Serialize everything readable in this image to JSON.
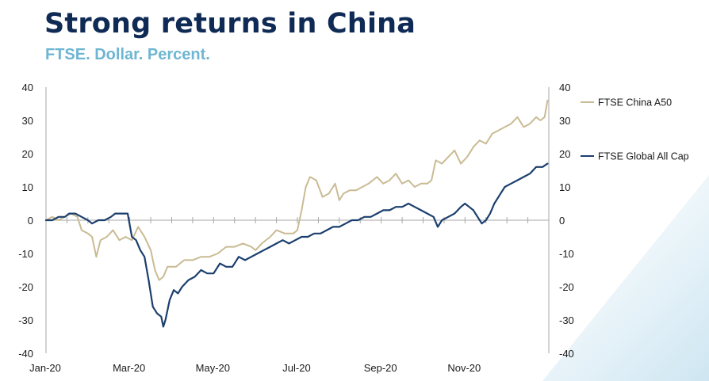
{
  "header": {
    "title": "Strong returns in China",
    "subtitle": "FTSE. Dollar. Percent."
  },
  "colors": {
    "title": "#0f2a55",
    "subtitle": "#6fb6d2",
    "china_a50": "#c9bb93",
    "global_all_cap": "#1b3f6e",
    "axis": "#a7a7a7"
  },
  "chart_data": {
    "type": "line",
    "title": "",
    "xlabel": "",
    "ylabel": "",
    "ylim": [
      -40,
      40
    ],
    "yticks": [
      40,
      30,
      20,
      10,
      0,
      -10,
      -20,
      -30,
      -40
    ],
    "yticks_right": [
      "40",
      "30",
      "20",
      "10",
      "0",
      "-10",
      "-20",
      "-30",
      "-40"
    ],
    "yticks_left": [
      "40",
      "30",
      "20",
      "10",
      "0",
      "-10",
      "-20",
      "-30",
      "-40"
    ],
    "xlim": [
      0,
      12
    ],
    "xticks": [
      {
        "label": "Jan-20",
        "x": 0
      },
      {
        "label": "Mar-20",
        "x": 2
      },
      {
        "label": "May-20",
        "x": 4
      },
      {
        "label": "Jul-20",
        "x": 6
      },
      {
        "label": "Sep-20",
        "x": 8
      },
      {
        "label": "Nov-20",
        "x": 10
      }
    ],
    "grid": false,
    "legend_position": "right",
    "series": [
      {
        "name": "FTSE China A50",
        "color": "#c9bb93",
        "points": [
          [
            0,
            0
          ],
          [
            0.15,
            1
          ],
          [
            0.3,
            0
          ],
          [
            0.45,
            1
          ],
          [
            0.6,
            2
          ],
          [
            0.75,
            1
          ],
          [
            0.85,
            -3
          ],
          [
            1.0,
            -4
          ],
          [
            1.1,
            -5
          ],
          [
            1.2,
            -11
          ],
          [
            1.3,
            -6
          ],
          [
            1.45,
            -5
          ],
          [
            1.6,
            -3
          ],
          [
            1.75,
            -6
          ],
          [
            1.9,
            -5
          ],
          [
            2.05,
            -6
          ],
          [
            2.2,
            -2
          ],
          [
            2.35,
            -5
          ],
          [
            2.5,
            -9
          ],
          [
            2.6,
            -15
          ],
          [
            2.7,
            -18
          ],
          [
            2.8,
            -17
          ],
          [
            2.9,
            -14
          ],
          [
            3.1,
            -14
          ],
          [
            3.3,
            -12
          ],
          [
            3.5,
            -12
          ],
          [
            3.7,
            -11
          ],
          [
            3.9,
            -11
          ],
          [
            4.1,
            -10
          ],
          [
            4.3,
            -8
          ],
          [
            4.5,
            -8
          ],
          [
            4.7,
            -7
          ],
          [
            4.9,
            -8
          ],
          [
            5.0,
            -9
          ],
          [
            5.15,
            -7
          ],
          [
            5.35,
            -5
          ],
          [
            5.5,
            -3
          ],
          [
            5.7,
            -4
          ],
          [
            5.9,
            -4
          ],
          [
            6.0,
            -3
          ],
          [
            6.1,
            3
          ],
          [
            6.2,
            10
          ],
          [
            6.3,
            13
          ],
          [
            6.45,
            12
          ],
          [
            6.6,
            7
          ],
          [
            6.75,
            8
          ],
          [
            6.9,
            11
          ],
          [
            7.0,
            6
          ],
          [
            7.1,
            8
          ],
          [
            7.25,
            9
          ],
          [
            7.4,
            9
          ],
          [
            7.55,
            10
          ],
          [
            7.7,
            11
          ],
          [
            7.9,
            13
          ],
          [
            8.05,
            11
          ],
          [
            8.2,
            12
          ],
          [
            8.35,
            14
          ],
          [
            8.5,
            11
          ],
          [
            8.65,
            12
          ],
          [
            8.8,
            10
          ],
          [
            8.95,
            11
          ],
          [
            9.1,
            11
          ],
          [
            9.2,
            12
          ],
          [
            9.3,
            18
          ],
          [
            9.45,
            17
          ],
          [
            9.6,
            19
          ],
          [
            9.75,
            21
          ],
          [
            9.9,
            17
          ],
          [
            10.05,
            19
          ],
          [
            10.2,
            22
          ],
          [
            10.35,
            24
          ],
          [
            10.5,
            23
          ],
          [
            10.65,
            26
          ],
          [
            10.8,
            27
          ],
          [
            10.95,
            28
          ],
          [
            11.1,
            29
          ],
          [
            11.25,
            31
          ],
          [
            11.4,
            28
          ],
          [
            11.55,
            29
          ],
          [
            11.7,
            31
          ],
          [
            11.8,
            30
          ],
          [
            11.9,
            31
          ],
          [
            11.97,
            36
          ]
        ]
      },
      {
        "name": "FTSE Global All Cap",
        "color": "#1b3f6e",
        "points": [
          [
            0,
            0
          ],
          [
            0.15,
            0
          ],
          [
            0.3,
            1
          ],
          [
            0.45,
            1
          ],
          [
            0.55,
            2
          ],
          [
            0.7,
            2
          ],
          [
            0.85,
            1
          ],
          [
            1.0,
            0
          ],
          [
            1.1,
            -1
          ],
          [
            1.25,
            0
          ],
          [
            1.4,
            0
          ],
          [
            1.55,
            1
          ],
          [
            1.65,
            2
          ],
          [
            1.8,
            2
          ],
          [
            1.95,
            2
          ],
          [
            2.05,
            -5
          ],
          [
            2.15,
            -6
          ],
          [
            2.25,
            -9
          ],
          [
            2.35,
            -11
          ],
          [
            2.45,
            -18
          ],
          [
            2.55,
            -26
          ],
          [
            2.65,
            -28
          ],
          [
            2.75,
            -29
          ],
          [
            2.8,
            -32
          ],
          [
            2.85,
            -30
          ],
          [
            2.95,
            -24
          ],
          [
            3.05,
            -21
          ],
          [
            3.15,
            -22
          ],
          [
            3.25,
            -20
          ],
          [
            3.4,
            -18
          ],
          [
            3.55,
            -17
          ],
          [
            3.7,
            -15
          ],
          [
            3.85,
            -16
          ],
          [
            4.0,
            -16
          ],
          [
            4.15,
            -13
          ],
          [
            4.3,
            -14
          ],
          [
            4.45,
            -14
          ],
          [
            4.6,
            -11
          ],
          [
            4.75,
            -12
          ],
          [
            4.9,
            -11
          ],
          [
            5.05,
            -10
          ],
          [
            5.2,
            -9
          ],
          [
            5.35,
            -8
          ],
          [
            5.5,
            -7
          ],
          [
            5.65,
            -6
          ],
          [
            5.8,
            -7
          ],
          [
            5.95,
            -6
          ],
          [
            6.1,
            -5
          ],
          [
            6.25,
            -5
          ],
          [
            6.4,
            -4
          ],
          [
            6.55,
            -4
          ],
          [
            6.7,
            -3
          ],
          [
            6.85,
            -2
          ],
          [
            7.0,
            -2
          ],
          [
            7.15,
            -1
          ],
          [
            7.3,
            0
          ],
          [
            7.45,
            0
          ],
          [
            7.6,
            1
          ],
          [
            7.75,
            1
          ],
          [
            7.9,
            2
          ],
          [
            8.05,
            3
          ],
          [
            8.2,
            3
          ],
          [
            8.35,
            4
          ],
          [
            8.5,
            4
          ],
          [
            8.65,
            5
          ],
          [
            8.8,
            4
          ],
          [
            8.95,
            3
          ],
          [
            9.1,
            2
          ],
          [
            9.25,
            1
          ],
          [
            9.35,
            -2
          ],
          [
            9.45,
            0
          ],
          [
            9.6,
            1
          ],
          [
            9.75,
            2
          ],
          [
            9.9,
            4
          ],
          [
            10.0,
            5
          ],
          [
            10.1,
            4
          ],
          [
            10.2,
            3
          ],
          [
            10.3,
            1
          ],
          [
            10.4,
            -1
          ],
          [
            10.5,
            0
          ],
          [
            10.6,
            2
          ],
          [
            10.7,
            5
          ],
          [
            10.8,
            7
          ],
          [
            10.95,
            10
          ],
          [
            11.1,
            11
          ],
          [
            11.25,
            12
          ],
          [
            11.4,
            13
          ],
          [
            11.55,
            14
          ],
          [
            11.7,
            16
          ],
          [
            11.85,
            16
          ],
          [
            11.97,
            17
          ]
        ]
      }
    ]
  }
}
